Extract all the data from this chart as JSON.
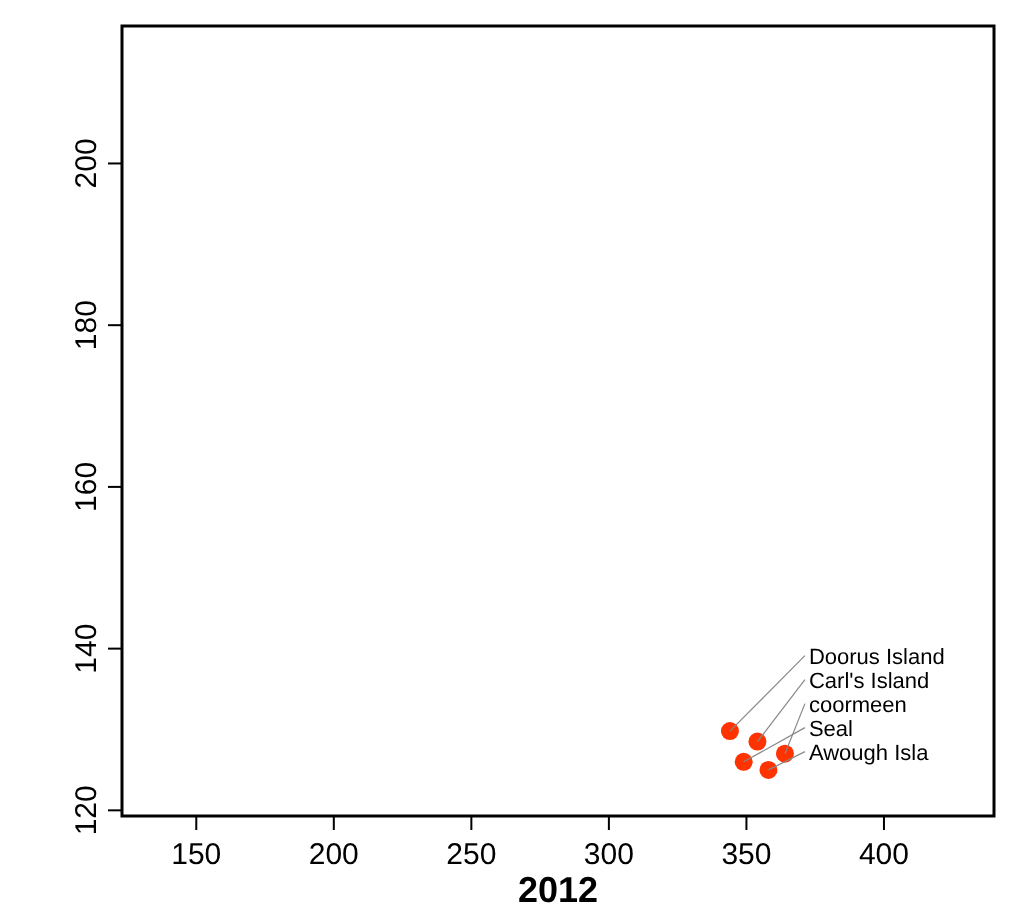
{
  "chart_data": {
    "type": "scatter",
    "xlabel": "2012",
    "x": [
      344,
      354,
      364,
      349,
      358
    ],
    "series": [
      {
        "color": "#ff3300",
        "values": [
          129.8,
          128.5,
          127,
          126,
          125
        ]
      }
    ],
    "annotations": [
      {
        "text": "Doorus Island",
        "x": 344,
        "y": 129.8
      },
      {
        "text": "Carl's Island",
        "x": 354,
        "y": 128.5
      },
      {
        "text": "coormeen",
        "x": 364,
        "y": 127
      },
      {
        "text": "Seal",
        "x": 349,
        "y": 126
      },
      {
        "text": "Awough Isla",
        "x": 358,
        "y": 125
      }
    ],
    "xlim": [
      123,
      440
    ],
    "ylim": [
      119.3,
      217
    ],
    "xticks": [
      150,
      200,
      250,
      300,
      350,
      400
    ],
    "yticks": [
      120,
      140,
      160,
      180,
      200
    ],
    "marker": "circle",
    "grid": false
  }
}
